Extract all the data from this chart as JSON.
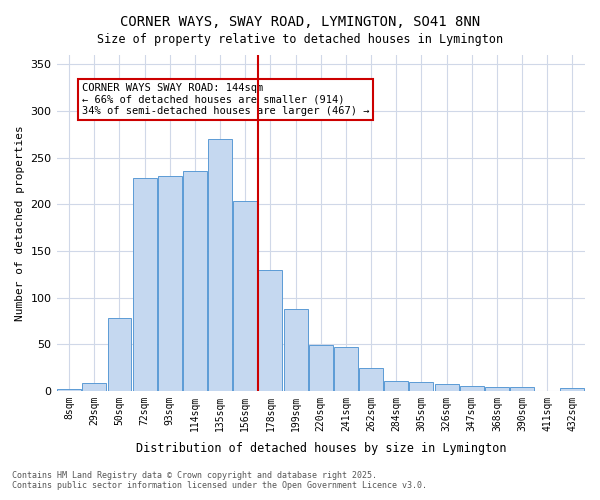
{
  "title": "CORNER WAYS, SWAY ROAD, LYMINGTON, SO41 8NN",
  "subtitle": "Size of property relative to detached houses in Lymington",
  "xlabel": "Distribution of detached houses by size in Lymington",
  "ylabel": "Number of detached properties",
  "bar_color": "#c5d8f0",
  "bar_edge_color": "#5b9bd5",
  "background_color": "#ffffff",
  "grid_color": "#d0d8e8",
  "vline_color": "#cc0000",
  "vline_x": 8,
  "annotation_box_color": "#cc0000",
  "annotation_text": "CORNER WAYS SWAY ROAD: 144sqm\n← 66% of detached houses are smaller (914)\n34% of semi-detached houses are larger (467) →",
  "categories": [
    "8sqm",
    "29sqm",
    "50sqm",
    "72sqm",
    "93sqm",
    "114sqm",
    "135sqm",
    "156sqm",
    "178sqm",
    "199sqm",
    "220sqm",
    "241sqm",
    "262sqm",
    "284sqm",
    "305sqm",
    "326sqm",
    "347sqm",
    "368sqm",
    "390sqm",
    "411sqm",
    "432sqm"
  ],
  "values": [
    2,
    8,
    78,
    228,
    230,
    236,
    270,
    203,
    130,
    88,
    49,
    47,
    24,
    11,
    9,
    7,
    5,
    4,
    4,
    0,
    3
  ],
  "ylim": [
    0,
    360
  ],
  "yticks": [
    0,
    50,
    100,
    150,
    200,
    250,
    300,
    350
  ],
  "footer": "Contains HM Land Registry data © Crown copyright and database right 2025.\nContains public sector information licensed under the Open Government Licence v3.0.",
  "figsize": [
    6.0,
    5.0
  ],
  "dpi": 100
}
